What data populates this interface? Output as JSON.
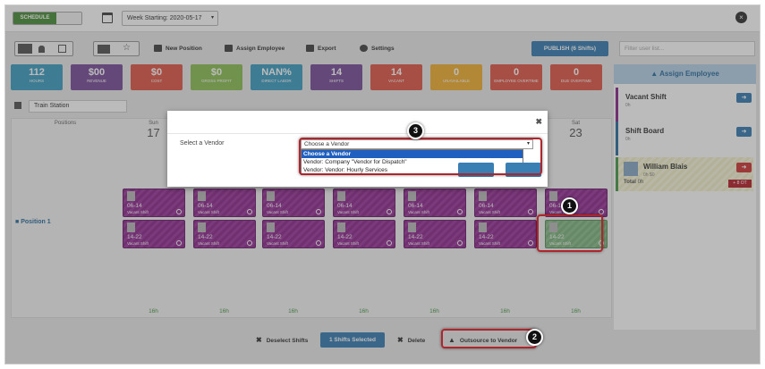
{
  "topbar": {
    "toggle_on": "SCHEDULE",
    "toggle_off": "",
    "week": "Week Starting: 2020-05-17"
  },
  "toolbar": {
    "new_position": "New Position",
    "assign_employee": "Assign Employee",
    "export": "Export",
    "settings": "Settings",
    "publish": "PUBLISH (6 Shifts)",
    "filter_placeholder": "Filter user list..."
  },
  "tiles": [
    {
      "value": "112",
      "label": "HOURS",
      "color": "#3f9fc4"
    },
    {
      "value": "$00",
      "label": "REVENUE",
      "color": "#7a4f9a"
    },
    {
      "value": "$0",
      "label": "COST",
      "color": "#e25a4a"
    },
    {
      "value": "$0",
      "label": "GROSS PROFIT",
      "color": "#8ec157"
    },
    {
      "value": "NAN%",
      "label": "DIRECT LABOR",
      "color": "#3f9fc4"
    },
    {
      "value": "14",
      "label": "SHIFTS",
      "color": "#7a4f9a"
    },
    {
      "value": "14",
      "label": "VACANT",
      "color": "#e25a4a"
    },
    {
      "value": "0",
      "label": "UNAVAILABLE",
      "color": "#f2b134"
    },
    {
      "value": "0",
      "label": "EMPLOYEE OVERTIME",
      "color": "#e25a4a"
    },
    {
      "value": "0",
      "label": "DUE OVERTIME",
      "color": "#e25a4a"
    }
  ],
  "location": "Train Station",
  "grid": {
    "positions_header": "Positions",
    "days": [
      {
        "d": "Sun",
        "n": "17"
      },
      {
        "d": "",
        "n": ""
      },
      {
        "d": "",
        "n": ""
      },
      {
        "d": "",
        "n": ""
      },
      {
        "d": "",
        "n": ""
      },
      {
        "d": "",
        "n": ""
      },
      {
        "d": "Sat",
        "n": "23"
      }
    ],
    "position_name": "Position 1",
    "shift_top_time": "06-14",
    "shift_bottom_time": "14-22",
    "shift_status": "Vacant Shift",
    "hours": "16h"
  },
  "side": {
    "header": "Assign Employee",
    "vacant_name": "Vacant Shift",
    "vacant_sub": "0h",
    "board_name": "Shift Board",
    "board_sub": "0h",
    "emp_name": "William Blais",
    "emp_sub": "0h   $0",
    "total_label": "Total",
    "total_hours": "0h",
    "ot": "+ 8 OT"
  },
  "bottom": {
    "deselect": "Deselect Shifts",
    "selected": "1 Shifts Selected",
    "delete": "Delete",
    "outsource": "Outsource to Vendor"
  },
  "modal": {
    "label": "Select a Vendor",
    "select_value": "Choose a Vendor",
    "options": [
      "Choose a Vendor",
      "Vendor: Company \"Vendor for Dispatch\"",
      "Vendor: Vendor: Hourly Services"
    ]
  },
  "callouts": [
    "1",
    "2",
    "3"
  ]
}
